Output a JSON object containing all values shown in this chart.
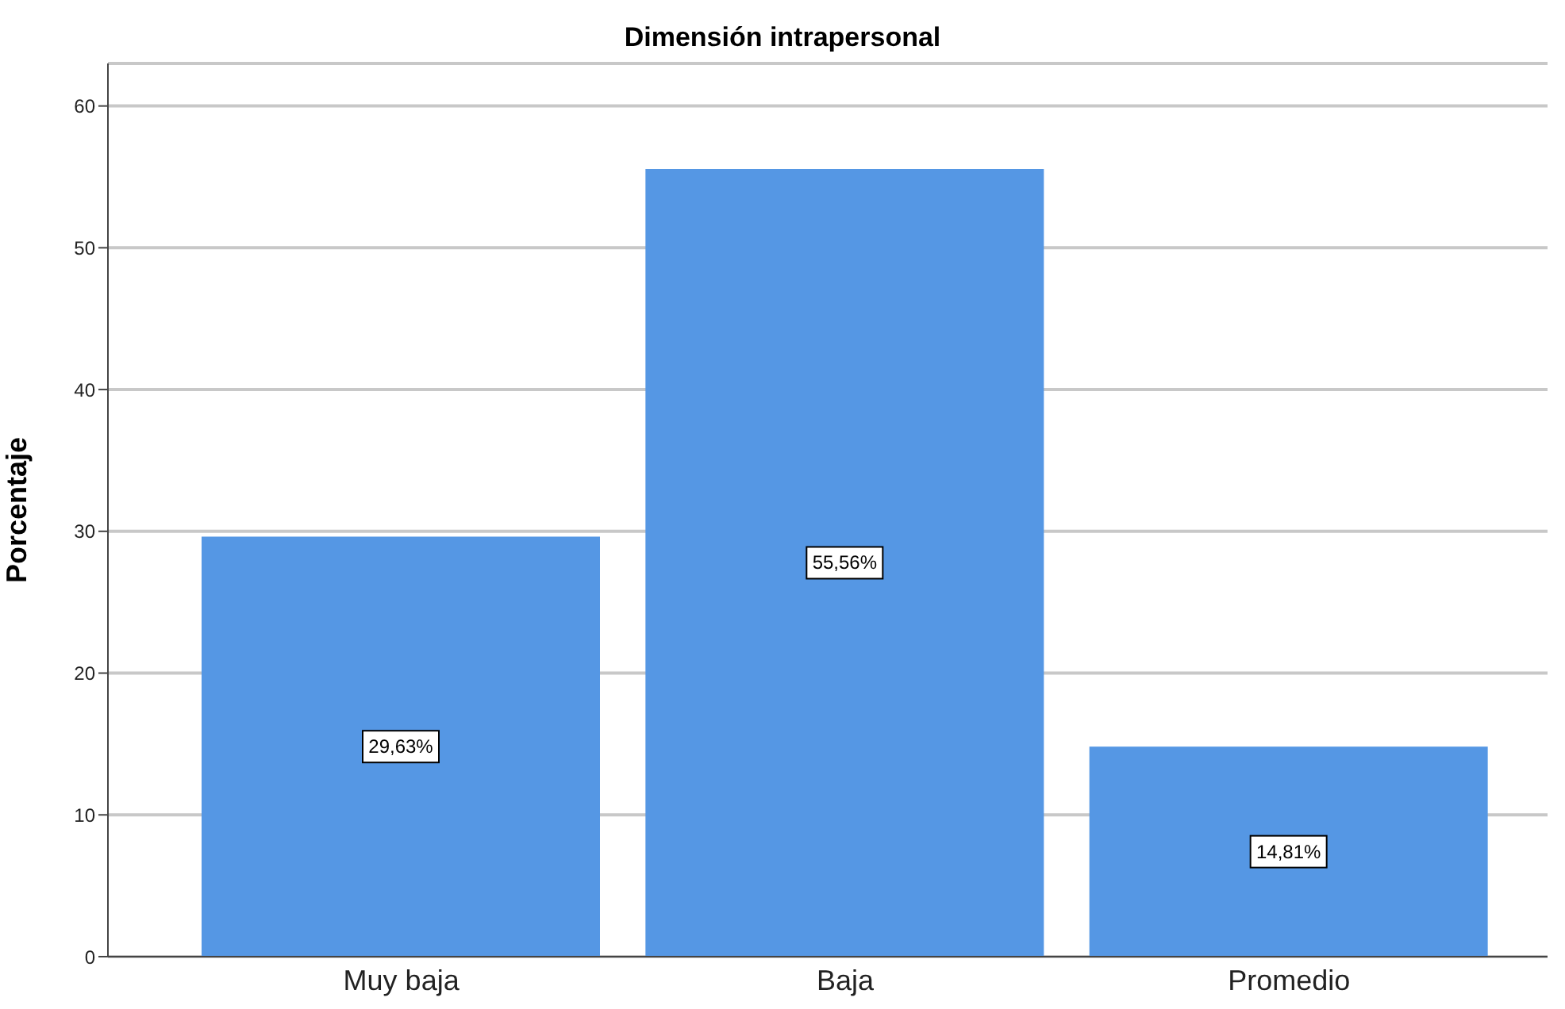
{
  "chart_data": {
    "type": "bar",
    "title": "Dimensión intrapersonal",
    "ylabel": "Porcentaje",
    "categories": [
      "Muy baja",
      "Baja",
      "Promedio"
    ],
    "values": [
      29.63,
      55.56,
      14.81
    ],
    "color": "#5597e4",
    "value_labels": [
      "29,63%",
      "55,56%",
      "14,81%"
    ],
    "ylim": [
      0,
      63
    ],
    "yticks": [
      0,
      10,
      20,
      30,
      40,
      50,
      60
    ],
    "grid": "y"
  }
}
